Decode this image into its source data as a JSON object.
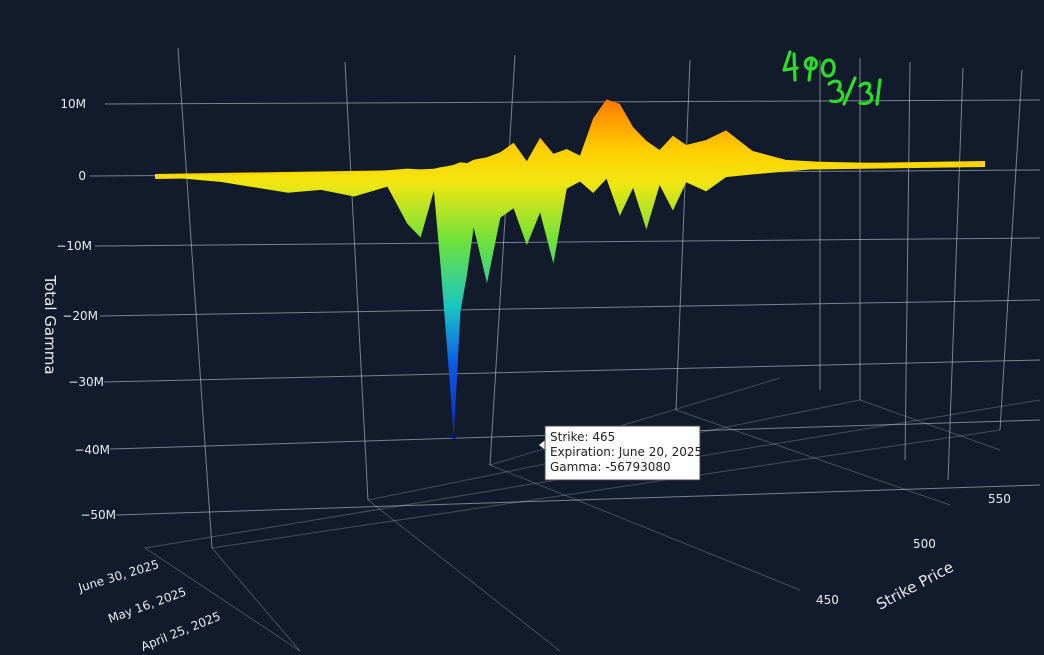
{
  "chart_data": {
    "type": "surface",
    "zlabel": "Total Gamma",
    "xlabel": "Strike Price",
    "ylabel": "",
    "z_ticks": [
      "10M",
      "0",
      "−10M",
      "−20M",
      "−30M",
      "−40M",
      "−50M"
    ],
    "z_tick_values": [
      10000000,
      0,
      -10000000,
      -20000000,
      -30000000,
      -40000000,
      -50000000
    ],
    "strike_ticks": [
      "450",
      "500",
      "550"
    ],
    "expiration_ticks": [
      "June 30, 2025",
      "May 16, 2025",
      "April 25, 2025"
    ],
    "profile": {
      "strikes": [
        420,
        430,
        440,
        445,
        450,
        455,
        458,
        460,
        462,
        463,
        464,
        465,
        466,
        467,
        468,
        470,
        472,
        474,
        476,
        478,
        480,
        482,
        484,
        486,
        488,
        490,
        492,
        494,
        496,
        498,
        500,
        503,
        506,
        510,
        515,
        520,
        530,
        545
      ],
      "min_gamma": [
        0,
        -1500000,
        -4000000,
        -3500000,
        -5000000,
        -3000000,
        -11000000,
        -14000000,
        -4000000,
        -20000000,
        -38000000,
        -56793080,
        -30000000,
        -22000000,
        -12000000,
        -24000000,
        -10000000,
        -8000000,
        -16000000,
        -9000000,
        -20000000,
        -4000000,
        -2500000,
        -5000000,
        -2000000,
        -10000000,
        -4000000,
        -13000000,
        -3500000,
        -9000000,
        -3000000,
        -5000000,
        -2000000,
        -1500000,
        -1000000,
        -500000,
        -300000,
        0
      ],
      "max_gamma": [
        200000,
        0,
        0,
        300000,
        0,
        500000,
        800000,
        600000,
        700000,
        1000000,
        1200000,
        1500000,
        2000000,
        1800000,
        2500000,
        3000000,
        4000000,
        6000000,
        2000000,
        7000000,
        3500000,
        4500000,
        3000000,
        11000000,
        15000000,
        14000000,
        9000000,
        6000000,
        4000000,
        7000000,
        5000000,
        6000000,
        8000000,
        3500000,
        1500000,
        1000000,
        500000,
        200000
      ]
    },
    "highlight": {
      "strike": 465,
      "expiration": "June 20, 2025",
      "gamma": -56793080
    },
    "annotations": [
      "490",
      "3/31"
    ]
  },
  "tooltip": {
    "strike_line": "Strike: 465",
    "expiration_line": "Expiration: June 20, 2025",
    "gamma_line": "Gamma: -56793080"
  },
  "colors": {
    "background": "#121b2b",
    "grid": "#cfd6e2",
    "annotation": "#2bdc2b",
    "colorscale": [
      "#0b0f9f",
      "#0d5be8",
      "#19c7c0",
      "#6fe23a",
      "#f1e611",
      "#ffcf00",
      "#ff8a00",
      "#ff2a00"
    ]
  }
}
